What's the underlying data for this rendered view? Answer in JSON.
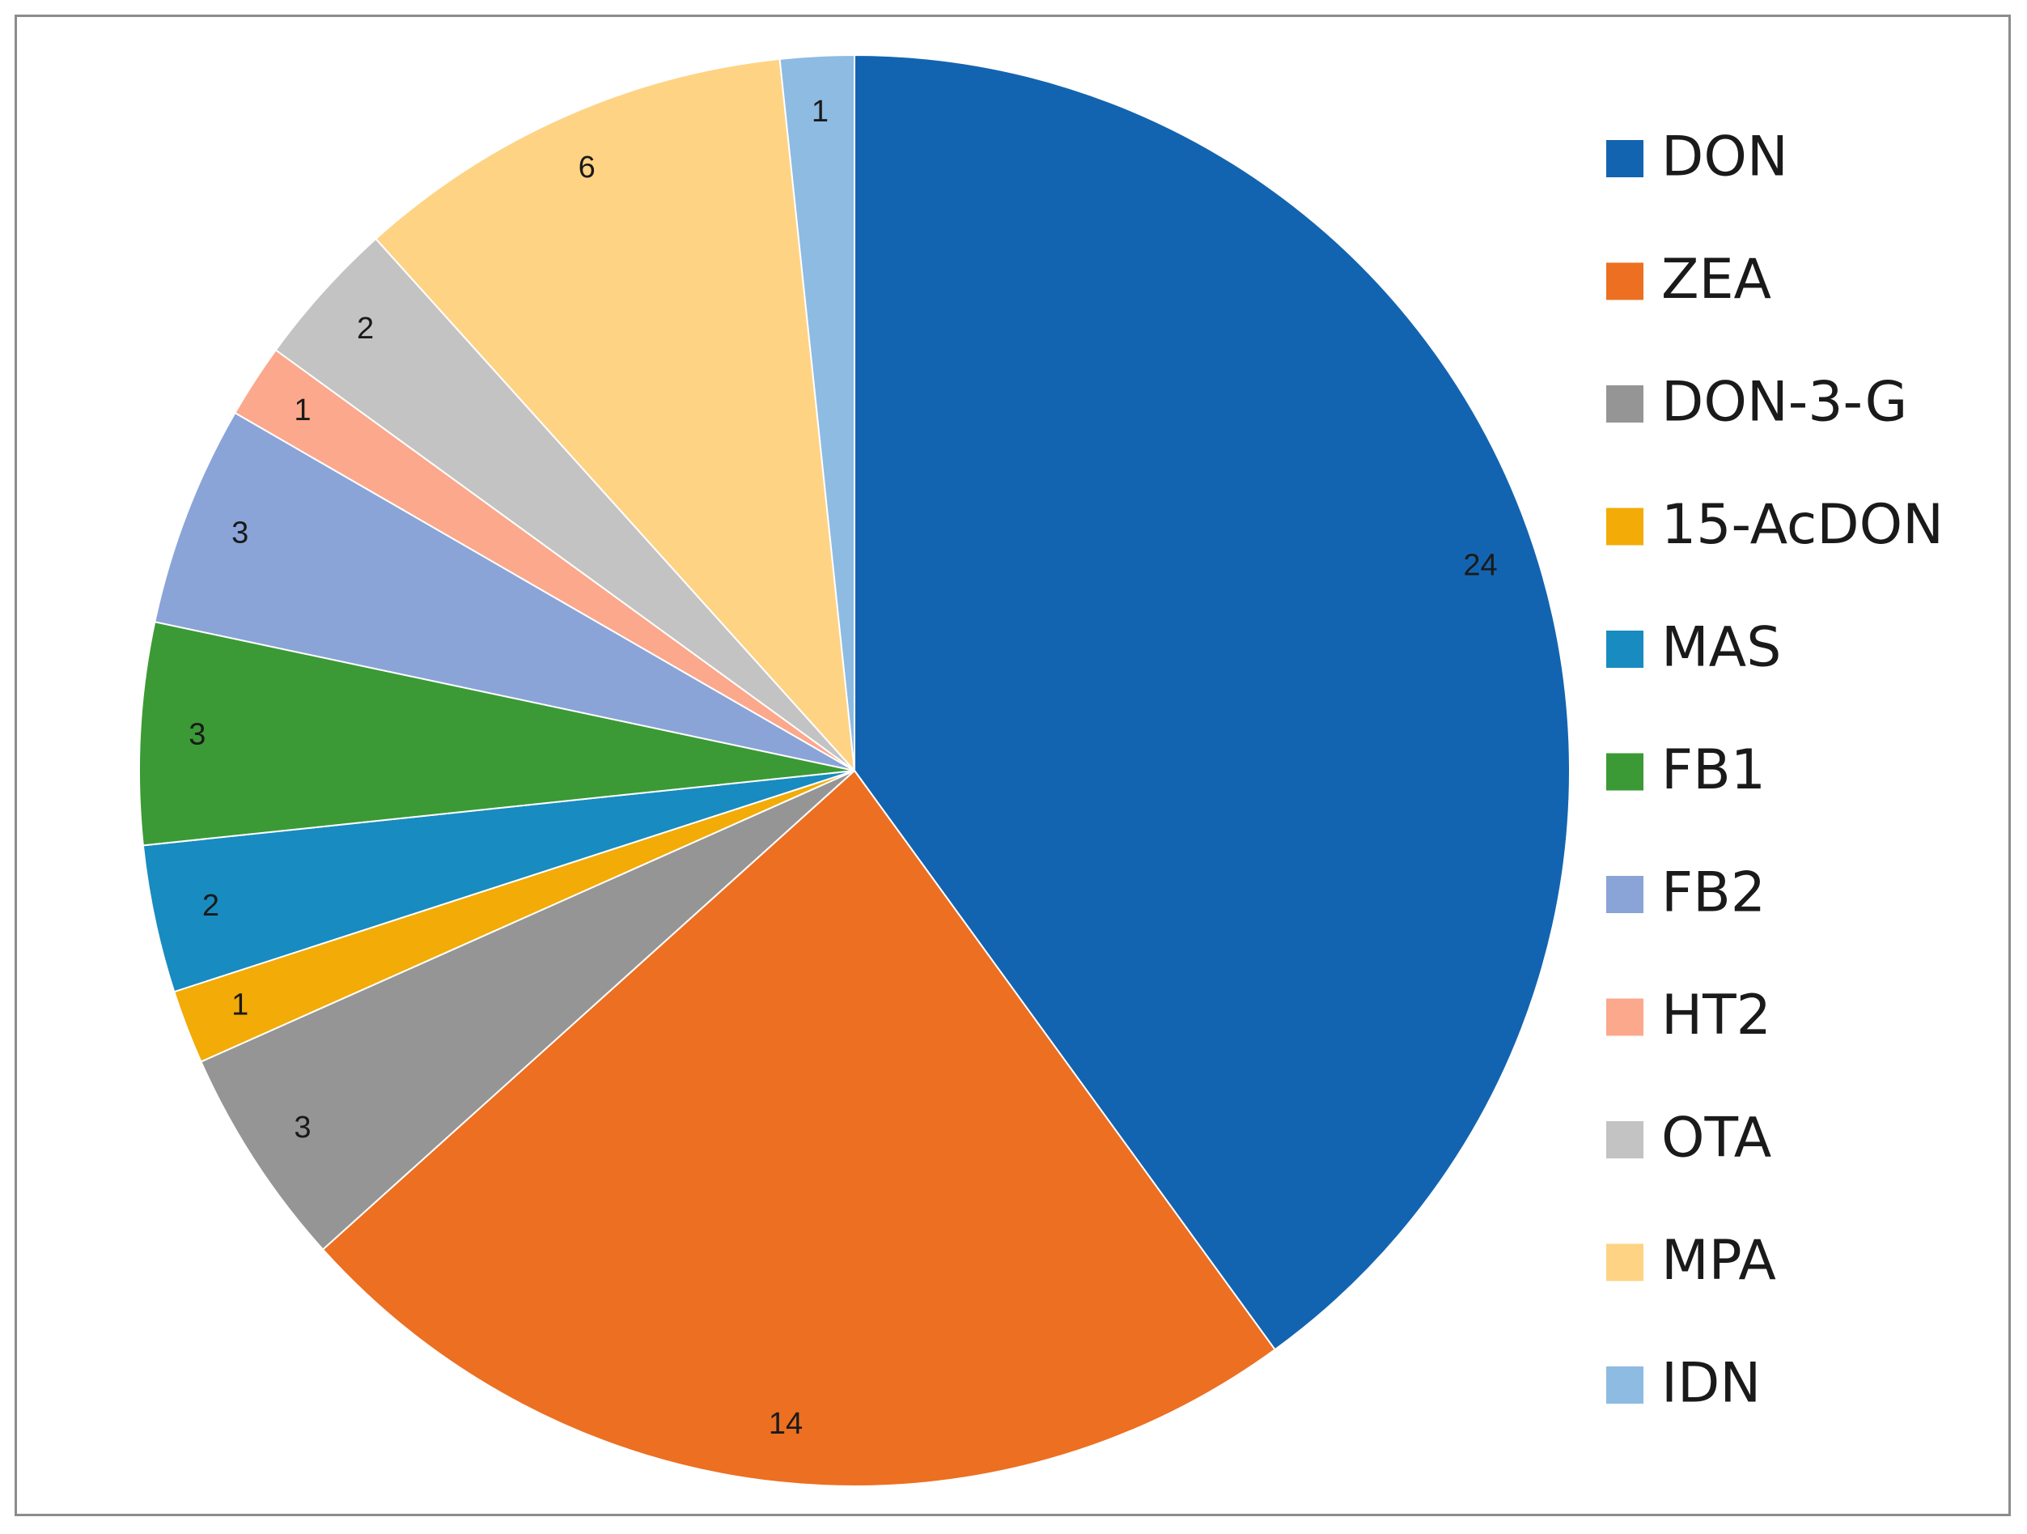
{
  "chart_data": {
    "type": "pie",
    "title": "",
    "start_angle_deg": 0,
    "direction": "clockwise",
    "legend_position": "right",
    "slices": [
      {
        "name": "DON",
        "value": 24,
        "color": "#1364B0"
      },
      {
        "name": "ZEA",
        "value": 14,
        "color": "#EC6F22"
      },
      {
        "name": "DON-3-G",
        "value": 3,
        "color": "#959595"
      },
      {
        "name": "15-AcDON",
        "value": 1,
        "color": "#F2AB07"
      },
      {
        "name": "MAS",
        "value": 2,
        "color": "#188BC0"
      },
      {
        "name": "FB1",
        "value": 3,
        "color": "#3B9A35"
      },
      {
        "name": "FB2",
        "value": 3,
        "color": "#8AA4D8"
      },
      {
        "name": "HT2",
        "value": 1,
        "color": "#FBA88C"
      },
      {
        "name": "OTA",
        "value": 2,
        "color": "#C3C3C3"
      },
      {
        "name": "MPA",
        "value": 6,
        "color": "#FED384"
      },
      {
        "name": "IDN",
        "value": 1,
        "color": "#8DBBE2"
      }
    ]
  }
}
